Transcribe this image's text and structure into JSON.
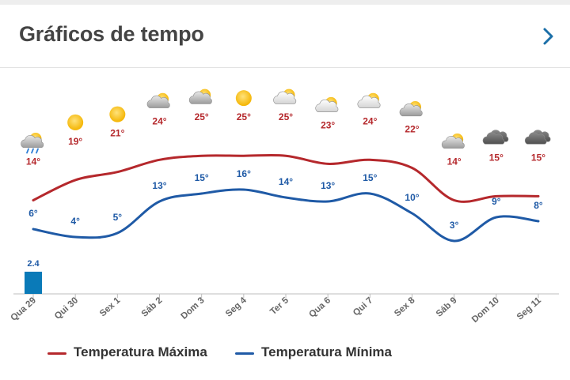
{
  "header": {
    "title": "Gráficos de tempo",
    "next_icon": "chevron-right-icon"
  },
  "legend": {
    "max_label": "Temperatura Máxima",
    "min_label": "Temperatura Mínima"
  },
  "colors": {
    "max": "#b5282c",
    "min": "#1f5aa6",
    "bar": "#0a7ab8",
    "axis": "#bdbdbd"
  },
  "chart_data": {
    "type": "line",
    "categories": [
      "Qua 29",
      "Qui 30",
      "Sex 1",
      "Sáb 2",
      "Dom 3",
      "Seg 4",
      "Ter 5",
      "Qua 6",
      "Qui 7",
      "Sex 8",
      "Sáb 9",
      "Dom 10",
      "Seg 11"
    ],
    "series": [
      {
        "name": "Temperatura Máxima",
        "values": [
          14,
          19,
          21,
          24,
          25,
          25,
          25,
          23,
          24,
          22,
          14,
          15,
          15
        ]
      },
      {
        "name": "Temperatura Mínima",
        "values": [
          6,
          4,
          5,
          13,
          15,
          16,
          14,
          13,
          15,
          10,
          3,
          9,
          8
        ]
      }
    ],
    "precipitation": {
      "values": [
        2.4,
        0,
        0,
        0,
        0,
        0,
        0,
        0,
        0,
        0,
        0,
        0,
        0
      ],
      "labels": [
        "2.4",
        "",
        "",
        "",
        "",
        "",
        "",
        "",
        "",
        "",
        "",
        "",
        ""
      ]
    },
    "icons": [
      "rain-cloud-sun-icon",
      "sun-icon",
      "sun-icon",
      "partly-cloudy-icon",
      "partly-cloudy-icon",
      "sun-icon",
      "sun-cloud-icon",
      "sun-cloud-icon",
      "sun-cloud-icon",
      "partly-cloudy-icon",
      "partly-cloudy-icon",
      "dark-cloud-icon",
      "dark-cloud-icon"
    ],
    "temp_labels_max": [
      "14°",
      "19°",
      "21°",
      "24°",
      "25°",
      "25°",
      "25°",
      "23°",
      "24°",
      "22°",
      "14°",
      "15°",
      "15°"
    ],
    "temp_labels_min": [
      "6°",
      "4°",
      "5°",
      "13°",
      "15°",
      "16°",
      "14°",
      "13°",
      "15°",
      "10°",
      "3°",
      "9°",
      "8°"
    ],
    "xlabel": "",
    "ylabel": "",
    "grid": false
  }
}
